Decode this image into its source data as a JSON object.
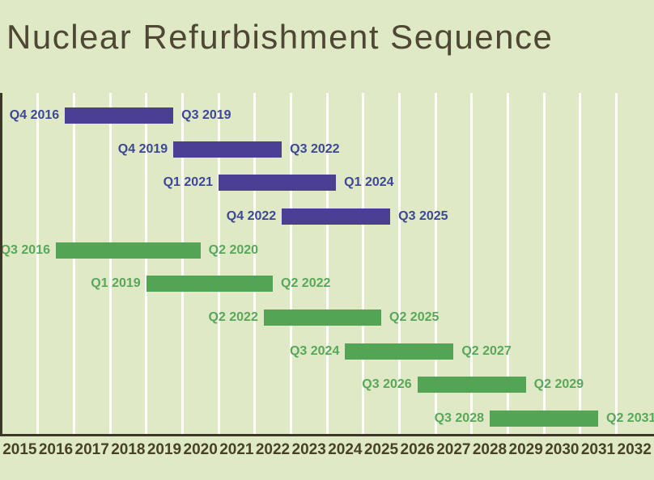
{
  "title": "Nuclear Refurbishment Sequence",
  "colors": {
    "background": "#dfe9c5",
    "purple_bar": "#4b3f94",
    "purple_label": "#3e4699",
    "green_bar": "#53a555",
    "green_label": "#58a75a",
    "title_text": "#4d4734",
    "axis_text": "#474128",
    "axis_line": "#3b3628",
    "gridline": "rgba(255,255,255,0.9)"
  },
  "chart_data": {
    "type": "bar",
    "subtype": "gantt",
    "title": "Nuclear Refurbishment Sequence",
    "x_axis": {
      "tick_labels": [
        "2015",
        "2016",
        "2017",
        "2018",
        "2019",
        "2020",
        "2021",
        "2022",
        "2023",
        "2024",
        "2025",
        "2026",
        "2027",
        "2028",
        "2029",
        "2030",
        "2031",
        "2032"
      ],
      "range": [
        2015,
        2033
      ],
      "grid": true
    },
    "legend": "none",
    "series": [
      {
        "name": "purple-task-1",
        "group": "purple",
        "start_label": "Q4 2016",
        "end_label": "Q3 2019",
        "start": 2016.75,
        "end": 2019.75
      },
      {
        "name": "purple-task-2",
        "group": "purple",
        "start_label": "Q4 2019",
        "end_label": "Q3 2022",
        "start": 2019.75,
        "end": 2022.75
      },
      {
        "name": "purple-task-3",
        "group": "purple",
        "start_label": "Q1 2021",
        "end_label": "Q1 2024",
        "start": 2021.0,
        "end": 2024.25
      },
      {
        "name": "purple-task-4",
        "group": "purple",
        "start_label": "Q4 2022",
        "end_label": "Q3 2025",
        "start": 2022.75,
        "end": 2025.75
      },
      {
        "name": "green-task-1",
        "group": "green",
        "start_label": "Q3 2016",
        "end_label": "Q2 2020",
        "start": 2016.5,
        "end": 2020.5
      },
      {
        "name": "green-task-2",
        "group": "green",
        "start_label": "Q1 2019",
        "end_label": "Q2 2022",
        "start": 2019.0,
        "end": 2022.5
      },
      {
        "name": "green-task-3",
        "group": "green",
        "start_label": "Q2 2022",
        "end_label": "Q2 2025",
        "start": 2022.25,
        "end": 2025.5
      },
      {
        "name": "green-task-4",
        "group": "green",
        "start_label": "Q3 2024",
        "end_label": "Q2 2027",
        "start": 2024.5,
        "end": 2027.5
      },
      {
        "name": "green-task-5",
        "group": "green",
        "start_label": "Q3 2026",
        "end_label": "Q2 2029",
        "start": 2026.5,
        "end": 2029.5
      },
      {
        "name": "green-task-6",
        "group": "green",
        "start_label": "Q3 2028",
        "end_label": "Q2 2031",
        "start": 2028.5,
        "end": 2031.5
      }
    ]
  }
}
